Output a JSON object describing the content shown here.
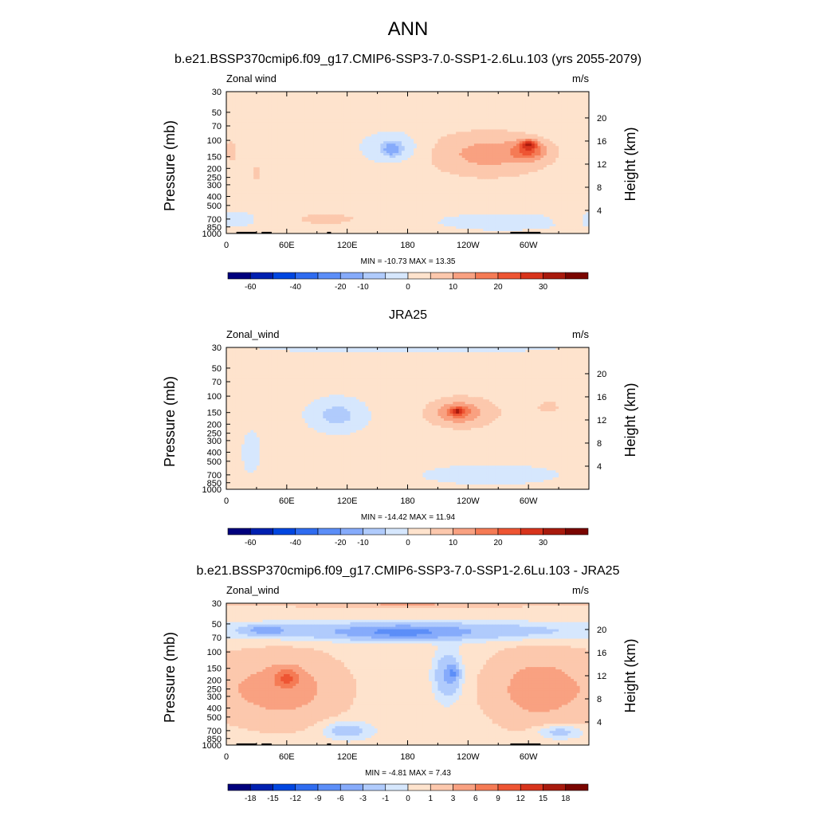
{
  "figure": {
    "title": "ANN"
  },
  "colors": {
    "anomaly": [
      "#00007d",
      "#0020b0",
      "#0046e0",
      "#2f6cf0",
      "#5c8ef8",
      "#86abfb",
      "#b0cbfc",
      "#d6e7fd",
      "#fee3cd",
      "#fcc8ad",
      "#f9a181",
      "#f57b55",
      "#ee5533",
      "#d8341c",
      "#a81a0d",
      "#7a0500"
    ],
    "filled_levels": [
      -70,
      -60,
      -50,
      -40,
      -30,
      -20,
      -10,
      -5,
      0,
      5,
      10,
      15,
      20,
      25,
      30,
      35,
      40
    ],
    "diff_levels": [
      -21,
      -18,
      -15,
      -12,
      -9,
      -6,
      -3,
      -1,
      0,
      1,
      3,
      6,
      9,
      12,
      15,
      18,
      21
    ],
    "land": "#000000"
  },
  "chart_data": [
    {
      "type": "heatmap",
      "title": "b.e21.BSSP370cmip6.f09_g17.CMIP6-SSP3-7.0-SSP1-2.6Lu.103 (yrs 2055-2079)",
      "left_label": "Zonal wind",
      "units": "m/s",
      "ylabel": "Pressure (mb)",
      "y2label": "Height (km)",
      "x_ticks": [
        "0",
        "60E",
        "120E",
        "180",
        "120W",
        "60W"
      ],
      "x_tick_lon": [
        0,
        60,
        120,
        180,
        240,
        300
      ],
      "xlim": [
        0,
        360
      ],
      "y_ticks": [
        "30",
        "50",
        "70",
        "100",
        "150",
        "200",
        "250",
        "300",
        "400",
        "500",
        "700",
        "850",
        "1000"
      ],
      "y_tick_mb": [
        30,
        50,
        70,
        100,
        150,
        200,
        250,
        300,
        400,
        500,
        700,
        850,
        1000
      ],
      "ylim_mb": [
        1000,
        30
      ],
      "height_ticks": [
        "4",
        "8",
        "12",
        "16",
        "20"
      ],
      "height_tick_km": [
        4,
        8,
        12,
        16,
        20
      ],
      "stats": "MIN = -10.73  MAX =  13.35",
      "colorbar_labels": [
        "-60",
        "-40",
        "-20",
        "-10",
        "0",
        "10",
        "20",
        "30"
      ],
      "colorbar_label_boxes": [
        1,
        3,
        5,
        6,
        8,
        10,
        12,
        14
      ],
      "background_value": 2,
      "blobs": [
        {
          "lon": 165,
          "mb": 120,
          "dlon": 35,
          "dlogp": 0.2,
          "v": -6
        },
        {
          "lon": 165,
          "mb": 125,
          "dlon": 10,
          "dlogp": 0.08,
          "v": -11
        },
        {
          "lon": 260,
          "mb": 140,
          "dlon": 75,
          "dlogp": 0.3,
          "v": 12
        },
        {
          "lon": 300,
          "mb": 130,
          "dlon": 22,
          "dlogp": 0.12,
          "v": 16
        },
        {
          "lon": 300,
          "mb": 110,
          "dlon": 10,
          "dlogp": 0.06,
          "v": 19
        },
        {
          "lon": 100,
          "mb": 700,
          "dlon": 60,
          "dlogp": 0.12,
          "v": 6
        },
        {
          "lon": 275,
          "mb": 750,
          "dlon": 85,
          "dlogp": 0.12,
          "v": -3
        },
        {
          "lon": 30,
          "mb": 230,
          "dlon": 10,
          "dlogp": 0.15,
          "v": 6
        },
        {
          "lon": 5,
          "mb": 130,
          "dlon": 10,
          "dlogp": 0.2,
          "v": 6
        },
        {
          "lon": 10,
          "mb": 700,
          "dlon": 25,
          "dlogp": 0.1,
          "v": -3
        },
        {
          "lon": 340,
          "mb": 700,
          "dlon": 20,
          "dlogp": 0.08,
          "v": 5
        }
      ],
      "land": [
        [
          10,
          30
        ],
        [
          35,
          45
        ],
        [
          100,
          104
        ],
        [
          282,
          312
        ]
      ]
    },
    {
      "type": "heatmap",
      "title": "JRA25",
      "left_label": "Zonal_wind",
      "units": "m/s",
      "ylabel": "Pressure (mb)",
      "y2label": "Height (km)",
      "x_ticks": [
        "0",
        "60E",
        "120E",
        "180",
        "120W",
        "60W"
      ],
      "x_tick_lon": [
        0,
        60,
        120,
        180,
        240,
        300
      ],
      "xlim": [
        0,
        360
      ],
      "y_ticks": [
        "30",
        "50",
        "70",
        "100",
        "150",
        "200",
        "250",
        "300",
        "400",
        "500",
        "700",
        "850",
        "1000"
      ],
      "y_tick_mb": [
        30,
        50,
        70,
        100,
        150,
        200,
        250,
        300,
        400,
        500,
        700,
        850,
        1000
      ],
      "ylim_mb": [
        1000,
        30
      ],
      "height_ticks": [
        "4",
        "8",
        "12",
        "16",
        "20"
      ],
      "height_tick_km": [
        4,
        8,
        12,
        16,
        20
      ],
      "stats": "MIN = -14.42  MAX =  11.94",
      "colorbar_labels": [
        "-60",
        "-40",
        "-20",
        "-10",
        "0",
        "10",
        "20",
        "30"
      ],
      "colorbar_label_boxes": [
        1,
        3,
        5,
        6,
        8,
        10,
        12,
        14
      ],
      "background_value": 2,
      "blobs": [
        {
          "lon": 110,
          "mb": 160,
          "dlon": 35,
          "dlogp": 0.22,
          "v": -7
        },
        {
          "lon": 235,
          "mb": 150,
          "dlon": 55,
          "dlogp": 0.25,
          "v": 8
        },
        {
          "lon": 230,
          "mb": 150,
          "dlon": 25,
          "dlogp": 0.13,
          "v": 12
        },
        {
          "lon": 230,
          "mb": 145,
          "dlon": 9,
          "dlogp": 0.05,
          "v": 17
        },
        {
          "lon": 320,
          "mb": 130,
          "dlon": 20,
          "dlogp": 0.12,
          "v": 6
        },
        {
          "lon": 262,
          "mb": 700,
          "dlon": 90,
          "dlogp": 0.14,
          "v": -3
        },
        {
          "lon": 75,
          "mb": 700,
          "dlon": 45,
          "dlogp": 0.1,
          "v": 5
        },
        {
          "lon": 25,
          "mb": 400,
          "dlon": 12,
          "dlogp": 0.3,
          "v": -3
        },
        {
          "lon": 180,
          "mb": 30,
          "dlon": 200,
          "dlogp": 0.08,
          "v": -3
        }
      ],
      "land": []
    },
    {
      "type": "heatmap",
      "title": "b.e21.BSSP370cmip6.f09_g17.CMIP6-SSP3-7.0-SSP1-2.6Lu.103 - JRA25",
      "left_label": "Zonal_wind",
      "units": "m/s",
      "ylabel": "Pressure (mb)",
      "y2label": "Height (km)",
      "x_ticks": [
        "0",
        "60E",
        "120E",
        "180",
        "120W",
        "60W"
      ],
      "x_tick_lon": [
        0,
        60,
        120,
        180,
        240,
        300
      ],
      "xlim": [
        0,
        360
      ],
      "y_ticks": [
        "30",
        "50",
        "70",
        "100",
        "150",
        "200",
        "250",
        "300",
        "400",
        "500",
        "700",
        "850",
        "1000"
      ],
      "y_tick_mb": [
        30,
        50,
        70,
        100,
        150,
        200,
        250,
        300,
        400,
        500,
        700,
        850,
        1000
      ],
      "ylim_mb": [
        1000,
        30
      ],
      "height_ticks": [
        "4",
        "8",
        "12",
        "16",
        "20"
      ],
      "height_tick_km": [
        4,
        8,
        12,
        16,
        20
      ],
      "stats": "MIN = -4.81  MAX =  7.43",
      "colorbar_labels": [
        "-18",
        "-15",
        "-12",
        "-9",
        "-6",
        "-3",
        "-1",
        "0",
        "1",
        "3",
        "6",
        "9",
        "12",
        "15",
        "18"
      ],
      "colorbar_label_boxes": [
        1,
        2,
        3,
        4,
        5,
        6,
        7,
        8,
        9,
        10,
        11,
        12,
        13,
        14,
        15
      ],
      "background_value": 0.5,
      "blobs": [
        {
          "lon": 180,
          "mb": 60,
          "dlon": 220,
          "dlogp": 0.12,
          "v": -3
        },
        {
          "lon": 175,
          "mb": 62,
          "dlon": 60,
          "dlogp": 0.08,
          "v": -4.2
        },
        {
          "lon": 40,
          "mb": 58,
          "dlon": 22,
          "dlogp": 0.06,
          "v": -4
        },
        {
          "lon": 220,
          "mb": 180,
          "dlon": 16,
          "dlogp": 0.3,
          "v": -3.2
        },
        {
          "lon": 225,
          "mb": 170,
          "dlon": 6,
          "dlogp": 0.1,
          "v": -4.2
        },
        {
          "lon": 55,
          "mb": 250,
          "dlon": 65,
          "dlogp": 0.42,
          "v": 4.5
        },
        {
          "lon": 60,
          "mb": 190,
          "dlon": 15,
          "dlogp": 0.12,
          "v": 7
        },
        {
          "lon": 310,
          "mb": 250,
          "dlon": 55,
          "dlogp": 0.45,
          "v": 4.5
        },
        {
          "lon": 180,
          "mb": 30,
          "dlon": 240,
          "dlogp": 0.04,
          "v": 3.5
        },
        {
          "lon": 120,
          "mb": 700,
          "dlon": 30,
          "dlogp": 0.12,
          "v": -2
        },
        {
          "lon": 330,
          "mb": 720,
          "dlon": 30,
          "dlogp": 0.1,
          "v": -2
        }
      ],
      "land": [
        [
          10,
          30
        ],
        [
          35,
          45
        ],
        [
          100,
          104
        ],
        [
          282,
          312
        ]
      ]
    }
  ]
}
